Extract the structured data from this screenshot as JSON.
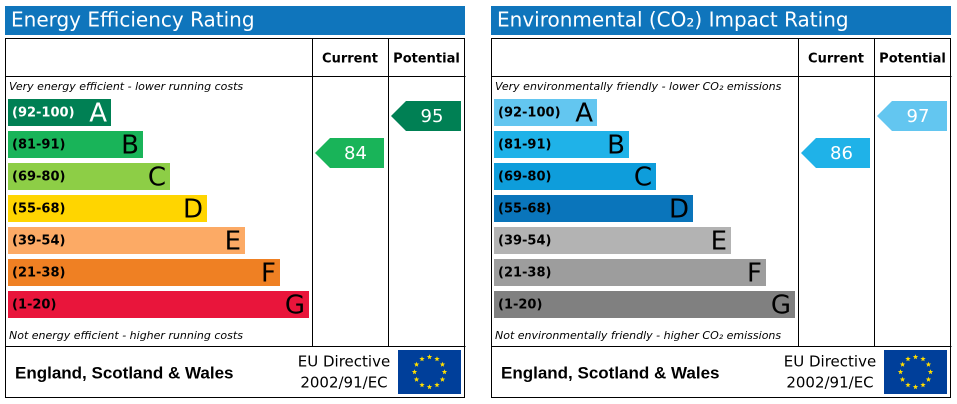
{
  "panels": [
    {
      "title": "Energy Efficiency Rating",
      "header": {
        "current": "Current",
        "potential": "Potential"
      },
      "top_note": "Very energy efficient - lower running costs",
      "bottom_note": "Not energy efficient - higher running costs",
      "bands": [
        {
          "range": "(92-100)",
          "letter": "A",
          "color": "#008054"
        },
        {
          "range": "(81-91)",
          "letter": "B",
          "color": "#19b459"
        },
        {
          "range": "(69-80)",
          "letter": "C",
          "color": "#8dce46"
        },
        {
          "range": "(55-68)",
          "letter": "D",
          "color": "#ffd500"
        },
        {
          "range": "(39-54)",
          "letter": "E",
          "color": "#fcaa65"
        },
        {
          "range": "(21-38)",
          "letter": "F",
          "color": "#ef8023"
        },
        {
          "range": "(1-20)",
          "letter": "G",
          "color": "#e9153b"
        }
      ],
      "current": 84,
      "potential": 95,
      "footer": {
        "region": "England, Scotland & Wales",
        "directive_line1": "EU Directive",
        "directive_line2": "2002/91/EC"
      }
    },
    {
      "title": "Environmental (CO₂) Impact Rating",
      "header": {
        "current": "Current",
        "potential": "Potential"
      },
      "top_note": "Very environmentally friendly - lower CO₂ emissions",
      "bottom_note": "Not environmentally friendly - higher CO₂ emissions",
      "bands": [
        {
          "range": "(92-100)",
          "letter": "A",
          "color": "#63c6f0"
        },
        {
          "range": "(81-91)",
          "letter": "B",
          "color": "#1fb2e8"
        },
        {
          "range": "(69-80)",
          "letter": "C",
          "color": "#0e9ddb"
        },
        {
          "range": "(55-68)",
          "letter": "D",
          "color": "#0a75bb"
        },
        {
          "range": "(39-54)",
          "letter": "E",
          "color": "#b3b3b3"
        },
        {
          "range": "(21-38)",
          "letter": "F",
          "color": "#9d9d9d"
        },
        {
          "range": "(1-20)",
          "letter": "G",
          "color": "#808080"
        }
      ],
      "current": 86,
      "potential": 97,
      "footer": {
        "region": "England, Scotland & Wales",
        "directive_line1": "EU Directive",
        "directive_line2": "2002/91/EC"
      }
    }
  ]
}
